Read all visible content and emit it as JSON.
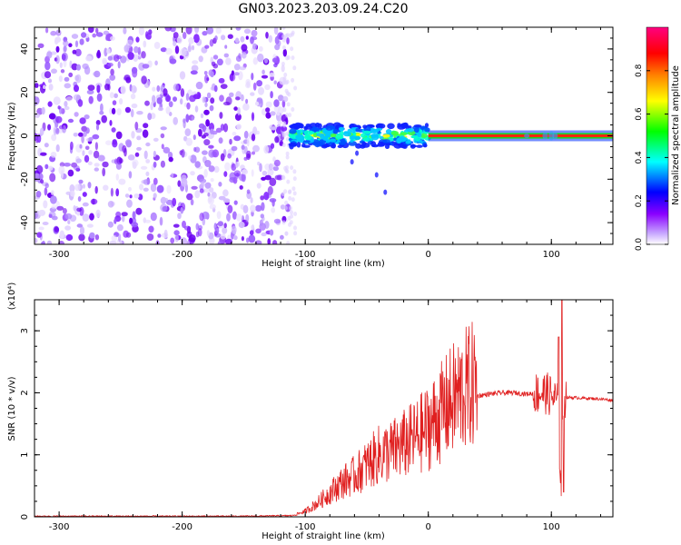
{
  "title": "GN03.2023.203.09.24.C20",
  "chart_data": [
    {
      "type": "heatmap",
      "xlabel": "Height of straight line (km)",
      "ylabel": "Frequency (Hz)",
      "xlim": [
        -320,
        150
      ],
      "ylim": [
        -50,
        50
      ],
      "xticks": [
        -300,
        -200,
        -100,
        0,
        100
      ],
      "yticks": [
        -40,
        -20,
        0,
        20,
        40
      ],
      "colorbar": {
        "label": "Normalized spectral amplitude",
        "range": [
          0,
          1
        ],
        "ticks": [
          "0.0",
          "0.2",
          "0.4",
          "0.6",
          "0.8"
        ],
        "colors": [
          "#ffffff",
          "#8a00ff",
          "#0000ff",
          "#00ffff",
          "#00ff00",
          "#ffff00",
          "#ff8000",
          "#ff0000",
          "#ff0080"
        ]
      },
      "regions": [
        {
          "x": [
            -320,
            -112
          ],
          "f": [
            -50,
            50
          ],
          "amplitude": "0.0-0.3 broadband noise"
        },
        {
          "x": [
            -112,
            0
          ],
          "f": [
            -6,
            6
          ],
          "amplitude": "0.2-0.9 narrow band near 0 Hz"
        },
        {
          "x": [
            0,
            150
          ],
          "f": [
            -2,
            2
          ],
          "amplitude": "~0.9 steady line at 0 Hz"
        }
      ]
    },
    {
      "type": "line",
      "xlabel": "Height of straight line (km)",
      "ylabel": "SNR (10 * v/v)",
      "y_multiplier": "(x10⁴)",
      "xlim": [
        -320,
        150
      ],
      "ylim": [
        0,
        3.5
      ],
      "xticks": [
        -300,
        -200,
        -100,
        0,
        100
      ],
      "yticks": [
        0,
        1,
        2,
        3
      ],
      "series": [
        {
          "color": "#e02020",
          "x": [
            -320,
            -250,
            -200,
            -150,
            -110,
            -100,
            -90,
            -80,
            -70,
            -60,
            -50,
            -40,
            -30,
            -20,
            -10,
            0,
            10,
            20,
            30,
            40,
            50,
            60,
            70,
            80,
            90,
            95,
            100,
            105,
            108,
            110,
            120,
            130,
            140,
            150
          ],
          "y": [
            0.01,
            0.01,
            0.01,
            0.01,
            0.02,
            0.08,
            0.2,
            0.35,
            0.5,
            0.6,
            0.75,
            0.9,
            0.95,
            1.05,
            1.15,
            1.3,
            1.5,
            1.7,
            1.85,
            1.95,
            1.98,
            2.0,
            2.0,
            1.98,
            2.0,
            2.0,
            1.95,
            1.85,
            0.4,
            1.93,
            1.92,
            1.91,
            1.9,
            1.88
          ]
        }
      ]
    }
  ]
}
